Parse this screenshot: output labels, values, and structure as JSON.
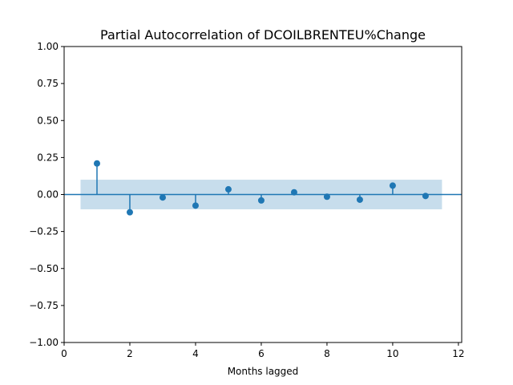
{
  "chart_data": {
    "type": "scatter",
    "subtype": "stem",
    "title": "Partial Autocorrelation of DCOILBRENTEU%Change",
    "xlabel": "Months lagged",
    "ylabel": "",
    "xlim": [
      0,
      12.1
    ],
    "ylim": [
      -1.0,
      1.0
    ],
    "x_ticks": [
      0,
      2,
      4,
      6,
      8,
      10,
      12
    ],
    "x_tick_labels": [
      "0",
      "2",
      "4",
      "6",
      "8",
      "10",
      "12"
    ],
    "y_ticks": [
      1.0,
      0.75,
      0.5,
      0.25,
      0.0,
      -0.25,
      -0.5,
      -0.75,
      -1.0
    ],
    "y_tick_labels": [
      "1.00",
      "0.75",
      "0.50",
      "0.25",
      "0.00",
      "−0.25",
      "−0.50",
      "−0.75",
      "−1.00"
    ],
    "grid": false,
    "lags": [
      1,
      2,
      3,
      4,
      5,
      6,
      7,
      8,
      9,
      10,
      11
    ],
    "values": [
      0.21,
      -0.12,
      -0.02,
      -0.075,
      0.035,
      -0.04,
      0.015,
      -0.015,
      -0.035,
      0.06,
      -0.01
    ],
    "confidence_band": {
      "x_start": 0.5,
      "x_end": 11.5,
      "upper": 0.1,
      "lower": -0.1
    },
    "zero_line": 0.0,
    "colors": {
      "marker": "#1f77b4",
      "band": "#1f77b4",
      "axis": "#000000"
    }
  }
}
